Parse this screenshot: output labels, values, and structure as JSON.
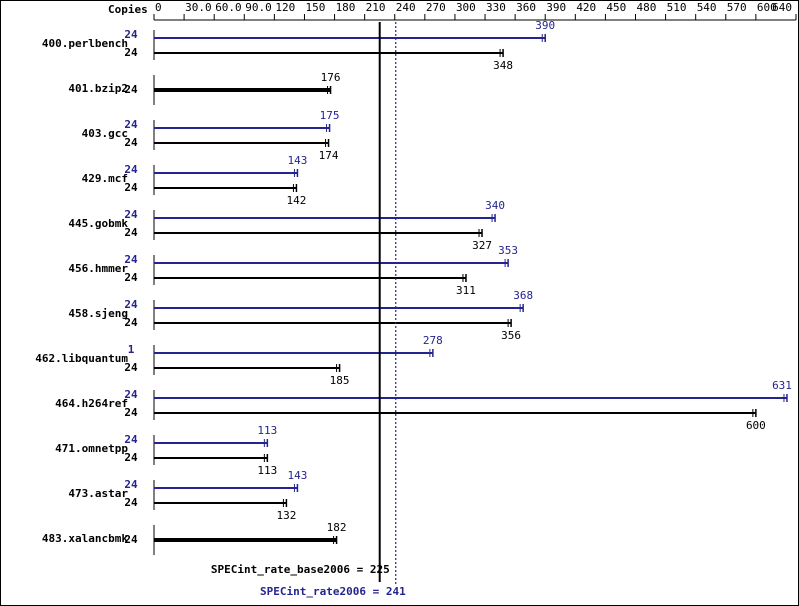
{
  "chart_data": {
    "type": "bar",
    "axis_title": "Copies",
    "categories": [
      "400.perlbench",
      "401.bzip2",
      "403.gcc",
      "429.mcf",
      "445.gobmk",
      "456.hmmer",
      "458.sjeng",
      "462.libquantum",
      "464.h264ref",
      "471.omnetpp",
      "473.astar",
      "483.xalancbmk"
    ],
    "series": [
      {
        "name": "base",
        "color": "#000000",
        "copies": [
          24,
          24,
          24,
          24,
          24,
          24,
          24,
          24,
          24,
          24,
          24,
          24
        ],
        "values": [
          348,
          176,
          174,
          142,
          327,
          311,
          356,
          185,
          600,
          113,
          132,
          182
        ]
      },
      {
        "name": "peak",
        "color": "#24248f",
        "copies": [
          24,
          null,
          24,
          24,
          24,
          24,
          24,
          1,
          24,
          24,
          24,
          null
        ],
        "values": [
          390,
          null,
          175,
          143,
          340,
          353,
          368,
          278,
          631,
          113,
          143,
          null
        ]
      }
    ],
    "xlim": [
      0,
      640
    ],
    "xticks": [
      0,
      {
        "value": 30,
        "label": "30.0"
      },
      {
        "value": 60,
        "label": "60.0"
      },
      {
        "value": 90,
        "label": "90.0"
      },
      120,
      150,
      180,
      210,
      240,
      270,
      300,
      330,
      360,
      390,
      420,
      450,
      480,
      510,
      540,
      570,
      600,
      640
    ],
    "reference_lines": [
      {
        "label": "SPECint_rate_base2006 = 225",
        "value": 225,
        "color": "#000000",
        "style": "solid"
      },
      {
        "label": "SPECint_rate2006 = 241",
        "value": 241,
        "color": "#24248f",
        "style": "dotted"
      }
    ]
  }
}
